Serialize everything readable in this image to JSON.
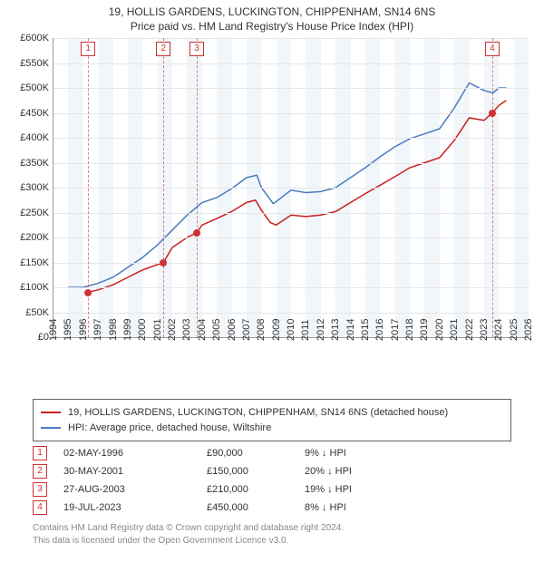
{
  "title_line1": "19, HOLLIS GARDENS, LUCKINGTON, CHIPPENHAM, SN14 6NS",
  "title_line2": "Price paid vs. HM Land Registry's House Price Index (HPI)",
  "chart": {
    "type": "line",
    "background_color": "#ffffff",
    "alt_band_color": "#f1f6fb",
    "grid_color": "#e6e6e6",
    "axis_color": "#999999",
    "x_years": [
      1994,
      1995,
      1996,
      1997,
      1998,
      1999,
      2000,
      2001,
      2002,
      2003,
      2004,
      2005,
      2006,
      2007,
      2008,
      2009,
      2010,
      2011,
      2012,
      2013,
      2014,
      2015,
      2016,
      2017,
      2018,
      2019,
      2020,
      2021,
      2022,
      2023,
      2024,
      2025,
      2026
    ],
    "x_year_min": 1994,
    "x_year_max": 2026,
    "y_min": 0,
    "y_max": 600,
    "y_ticks": [
      0,
      50,
      100,
      150,
      200,
      250,
      300,
      350,
      400,
      450,
      500,
      550,
      600
    ],
    "y_tick_labels": [
      "£0",
      "£50K",
      "£100K",
      "£150K",
      "£200K",
      "£250K",
      "£300K",
      "£350K",
      "£400K",
      "£450K",
      "£500K",
      "£550K",
      "£600K"
    ],
    "series": {
      "property": {
        "label": "19, HOLLIS GARDENS, LUCKINGTON, CHIPPENHAM, SN14 6NS (detached house)",
        "color": "#cc1e1e",
        "line_width": 1.5,
        "points": [
          [
            1996.33,
            90
          ],
          [
            1997,
            95
          ],
          [
            1998,
            105
          ],
          [
            1999,
            120
          ],
          [
            2000,
            135
          ],
          [
            2001.41,
            150
          ],
          [
            2002,
            180
          ],
          [
            2003,
            200
          ],
          [
            2003.65,
            210
          ],
          [
            2004,
            225
          ],
          [
            2005,
            238
          ],
          [
            2006,
            252
          ],
          [
            2007,
            270
          ],
          [
            2007.6,
            275
          ],
          [
            2008,
            255
          ],
          [
            2008.6,
            230
          ],
          [
            2009,
            225
          ],
          [
            2010,
            245
          ],
          [
            2011,
            242
          ],
          [
            2012,
            245
          ],
          [
            2013,
            252
          ],
          [
            2014,
            270
          ],
          [
            2015,
            288
          ],
          [
            2016,
            305
          ],
          [
            2017,
            322
          ],
          [
            2018,
            340
          ],
          [
            2019,
            350
          ],
          [
            2020,
            360
          ],
          [
            2021,
            395
          ],
          [
            2022,
            440
          ],
          [
            2023,
            435
          ],
          [
            2023.55,
            450
          ],
          [
            2024,
            465
          ],
          [
            2024.5,
            475
          ]
        ]
      },
      "hpi": {
        "label": "HPI: Average price, detached house, Wiltshire",
        "color": "#4a7bbf",
        "line_width": 1.5,
        "points": [
          [
            1995,
            100
          ],
          [
            1996,
            100
          ],
          [
            1997,
            108
          ],
          [
            1998,
            120
          ],
          [
            1999,
            140
          ],
          [
            2000,
            160
          ],
          [
            2001,
            185
          ],
          [
            2002,
            215
          ],
          [
            2003,
            245
          ],
          [
            2004,
            270
          ],
          [
            2005,
            280
          ],
          [
            2006,
            298
          ],
          [
            2007,
            320
          ],
          [
            2007.7,
            325
          ],
          [
            2008,
            300
          ],
          [
            2008.8,
            268
          ],
          [
            2009,
            272
          ],
          [
            2010,
            295
          ],
          [
            2011,
            290
          ],
          [
            2012,
            292
          ],
          [
            2013,
            300
          ],
          [
            2014,
            320
          ],
          [
            2015,
            340
          ],
          [
            2016,
            362
          ],
          [
            2017,
            382
          ],
          [
            2018,
            398
          ],
          [
            2019,
            408
          ],
          [
            2020,
            418
          ],
          [
            2021,
            460
          ],
          [
            2022,
            510
          ],
          [
            2023,
            495
          ],
          [
            2023.6,
            490
          ],
          [
            2024,
            500
          ],
          [
            2024.5,
            500
          ]
        ]
      }
    },
    "event_markers": [
      {
        "n": "1",
        "year": 1996.33,
        "price": 90
      },
      {
        "n": "2",
        "year": 2001.41,
        "price": 150
      },
      {
        "n": "3",
        "year": 2003.65,
        "price": 210
      },
      {
        "n": "4",
        "year": 2023.55,
        "price": 450
      }
    ]
  },
  "legend": [
    {
      "color": "#cc1e1e",
      "label": "19, HOLLIS GARDENS, LUCKINGTON, CHIPPENHAM, SN14 6NS (detached house)"
    },
    {
      "color": "#4a7bbf",
      "label": "HPI: Average price, detached house, Wiltshire"
    }
  ],
  "events": [
    {
      "n": "1",
      "date": "02-MAY-1996",
      "price": "£90,000",
      "diff": "9% ↓ HPI"
    },
    {
      "n": "2",
      "date": "30-MAY-2001",
      "price": "£150,000",
      "diff": "20% ↓ HPI"
    },
    {
      "n": "3",
      "date": "27-AUG-2003",
      "price": "£210,000",
      "diff": "19% ↓ HPI"
    },
    {
      "n": "4",
      "date": "19-JUL-2023",
      "price": "£450,000",
      "diff": "8% ↓ HPI"
    }
  ],
  "footer_line1": "Contains HM Land Registry data © Crown copyright and database right 2024.",
  "footer_line2": "This data is licensed under the Open Government Licence v3.0."
}
